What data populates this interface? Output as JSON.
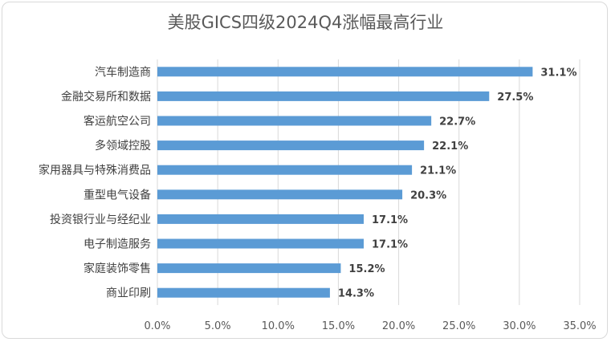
{
  "chart_data": {
    "type": "bar",
    "orientation": "horizontal",
    "title": "美股GICS四级2024Q4涨幅最高行业",
    "categories": [
      "汽车制造商",
      "金融交易所和数据",
      "客运航空公司",
      "多领域控股",
      "家用器具与特殊消费品",
      "重型电气设备",
      "投资银行业与经纪业",
      "电子制造服务",
      "家庭装饰零售",
      "商业印刷"
    ],
    "values": [
      31.1,
      27.5,
      22.7,
      22.1,
      21.1,
      20.3,
      17.1,
      17.1,
      15.2,
      14.3
    ],
    "data_labels": [
      "31.1%",
      "27.5%",
      "22.7%",
      "22.1%",
      "21.1%",
      "20.3%",
      "17.1%",
      "17.1%",
      "15.2%",
      "14.3%"
    ],
    "x_ticks": [
      "0.0%",
      "5.0%",
      "10.0%",
      "15.0%",
      "20.0%",
      "25.0%",
      "30.0%",
      "35.0%"
    ],
    "xlim": [
      0,
      35
    ],
    "grid": "vertical",
    "legend": "none",
    "bar_color": "#5b9bd5"
  }
}
